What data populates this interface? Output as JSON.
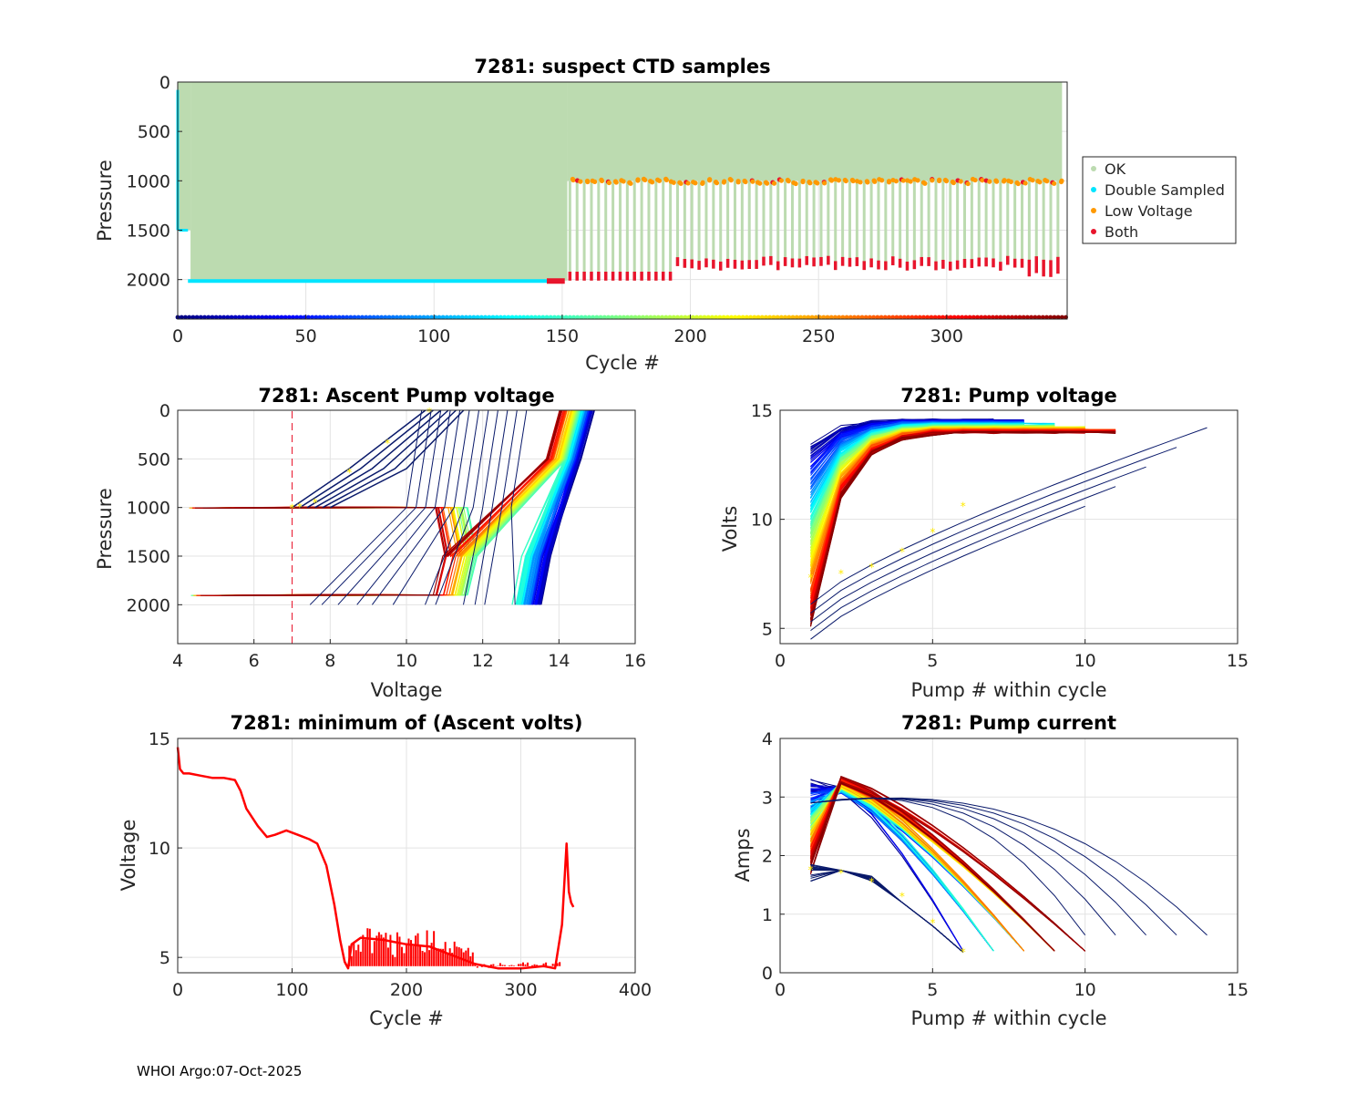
{
  "footer": "WHOI Argo:07-Oct-2025",
  "chart_data": [
    {
      "id": "samples",
      "type": "scatter",
      "title": "7281: suspect CTD samples",
      "xlabel": "Cycle #",
      "ylabel": "Pressure",
      "xlim": [
        0,
        347
      ],
      "ylim": [
        2400,
        0
      ],
      "xticks": [
        0,
        50,
        100,
        150,
        200,
        250,
        300
      ],
      "yticks": [
        0,
        500,
        1000,
        1500,
        2000
      ],
      "legend_position": "outside-right",
      "legend": [
        {
          "label": "OK",
          "color": "#bcdbb0"
        },
        {
          "label": "Double Sampled",
          "color": "#00e5ff"
        },
        {
          "label": "Low Voltage",
          "color": "#ff9900"
        },
        {
          "label": "Both",
          "color": "#e8152c"
        }
      ],
      "profile_depth_segments": [
        {
          "cycles": [
            0,
            5
          ],
          "max_pressure": 1500
        },
        {
          "cycles": [
            5,
            152
          ],
          "max_pressure": 2020
        },
        {
          "cycles": [
            152,
            346
          ],
          "max_pressure": 1000,
          "alternating_deep": 1900
        }
      ]
    },
    {
      "id": "ascent",
      "type": "line",
      "title": "7281: Ascent Pump voltage",
      "xlabel": "Voltage",
      "ylabel": "Pressure",
      "xlim": [
        4,
        16
      ],
      "ylim": [
        2400,
        0
      ],
      "xticks": [
        4,
        6,
        8,
        10,
        12,
        14,
        16
      ],
      "yticks": [
        0,
        500,
        1000,
        1500,
        2000
      ],
      "threshold_voltage": 7
    },
    {
      "id": "pumpv",
      "type": "line",
      "title": "7281: Pump voltage",
      "xlabel": "Pump # within cycle",
      "ylabel": "Volts",
      "xlim": [
        0,
        15
      ],
      "ylim": [
        4.3,
        15
      ],
      "xticks": [
        0,
        5,
        10,
        15
      ],
      "yticks": [
        5,
        10,
        15
      ]
    },
    {
      "id": "minv",
      "type": "line",
      "title": "7281: minimum of (Ascent volts)",
      "xlabel": "Cycle #",
      "ylabel": "Voltage",
      "xlim": [
        0,
        400
      ],
      "ylim": [
        4.3,
        15
      ],
      "xticks": [
        0,
        100,
        200,
        300,
        400
      ],
      "yticks": [
        5,
        10,
        15
      ],
      "series": [
        {
          "name": "min ascent volts",
          "color": "#ff0000",
          "x": [
            0,
            2,
            5,
            10,
            20,
            30,
            40,
            50,
            55,
            60,
            70,
            78,
            85,
            95,
            105,
            115,
            122,
            130,
            137,
            142,
            146,
            149,
            152,
            160,
            180,
            200,
            220,
            240,
            260,
            280,
            300,
            320,
            330,
            336,
            340,
            342,
            344,
            346
          ],
          "y": [
            14.6,
            13.6,
            13.4,
            13.4,
            13.3,
            13.2,
            13.2,
            13.1,
            12.6,
            11.8,
            11.0,
            10.5,
            10.6,
            10.8,
            10.6,
            10.4,
            10.2,
            9.2,
            7.4,
            5.8,
            4.8,
            4.5,
            5.6,
            5.9,
            5.8,
            5.6,
            5.5,
            5.1,
            4.7,
            4.5,
            4.5,
            4.6,
            4.5,
            6.5,
            10.2,
            8.0,
            7.5,
            7.3
          ]
        }
      ]
    },
    {
      "id": "pumpc",
      "type": "line",
      "title": "7281: Pump current",
      "xlabel": "Pump # within cycle",
      "ylabel": "Amps",
      "xlim": [
        0,
        15
      ],
      "ylim": [
        0,
        4
      ],
      "xticks": [
        0,
        5,
        10,
        15
      ],
      "yticks": [
        0,
        1,
        2,
        3,
        4
      ]
    }
  ]
}
